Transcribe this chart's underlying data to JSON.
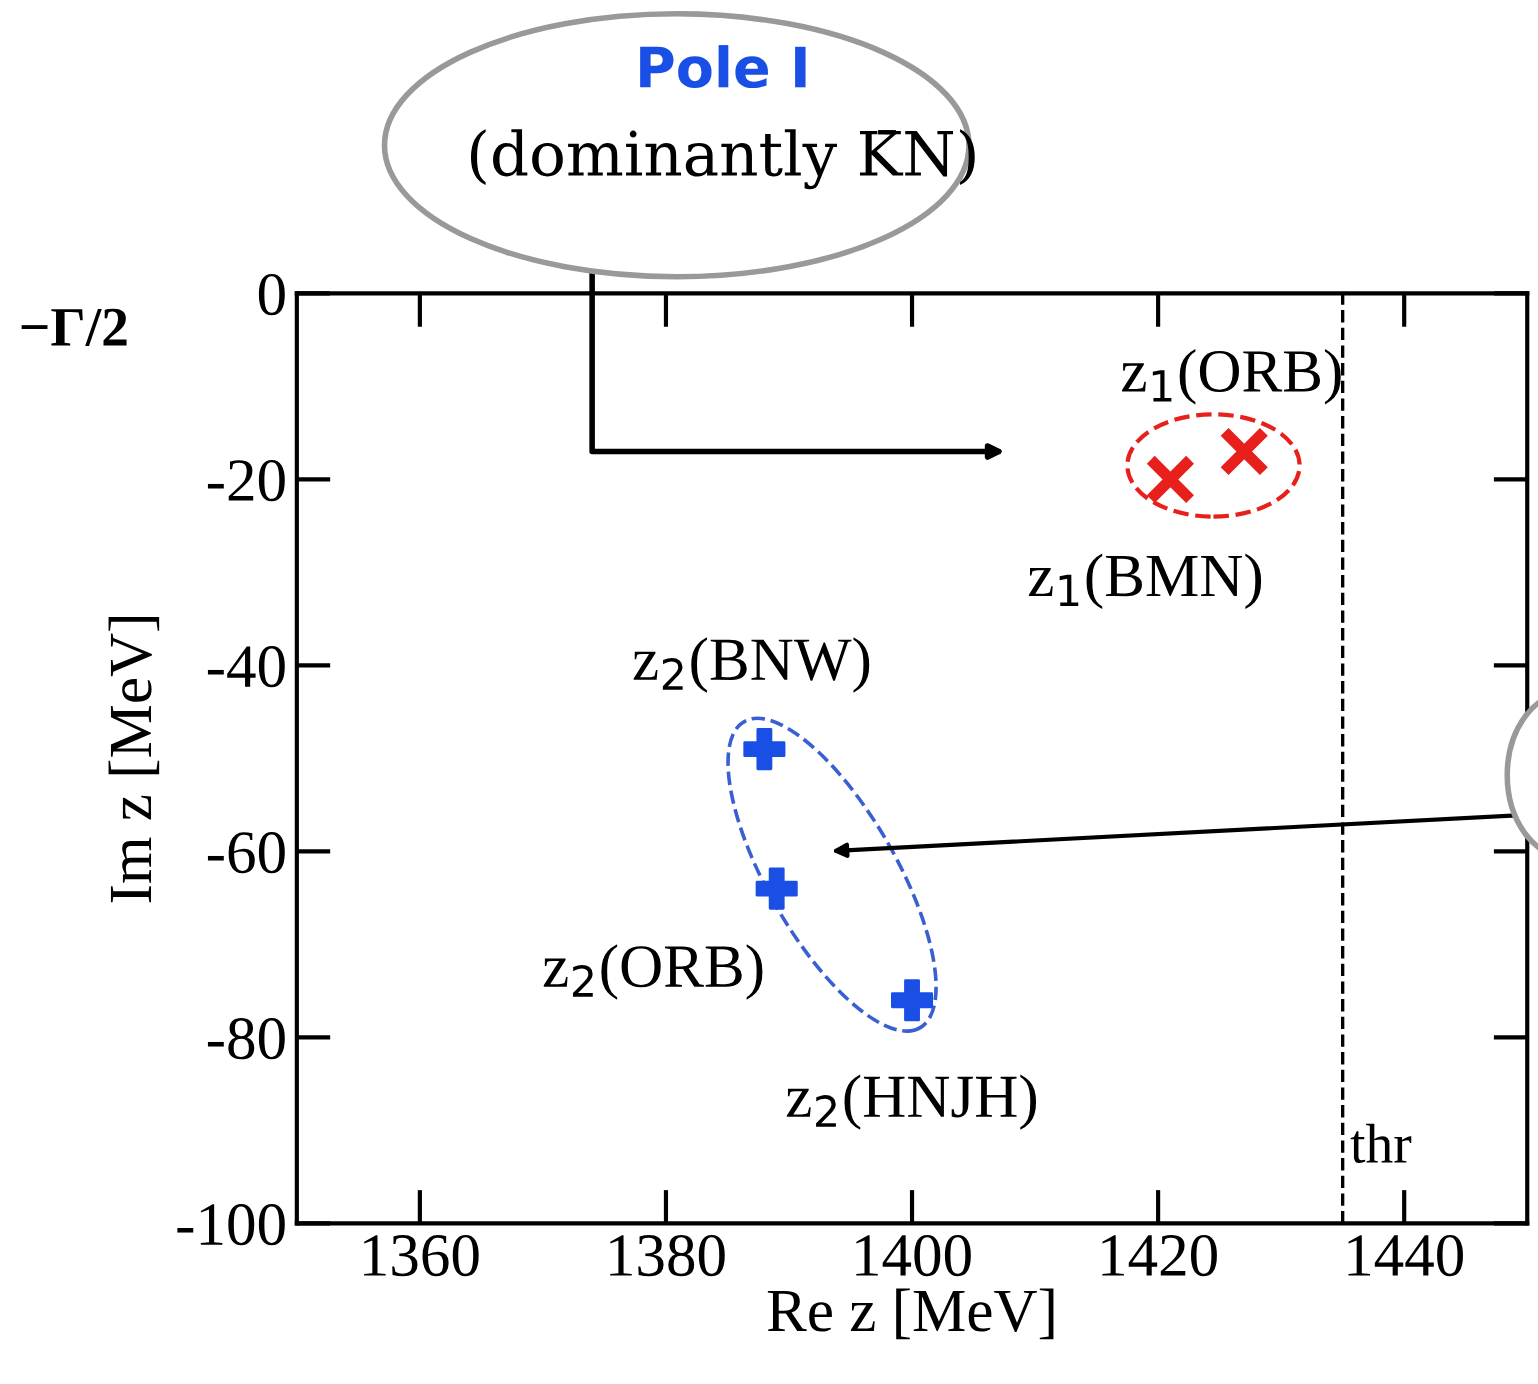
{
  "chart_data": {
    "type": "scatter",
    "xlabel": "Re z [MeV]",
    "ylabel": "Im z [MeV]",
    "xlim": [
      1350,
      1450
    ],
    "xticks": [
      1360,
      1380,
      1400,
      1420,
      1440
    ],
    "ylim": [
      -100,
      0
    ],
    "yticks": [
      -100,
      -80,
      -60,
      -40,
      -20,
      0
    ],
    "grid": false,
    "series": [
      {
        "color": "#e8201c",
        "marker": "cross",
        "x": [
          1421,
          1427
        ],
        "values": [
          -20,
          -17
        ]
      },
      {
        "color": "#1a4fe6",
        "marker": "plus",
        "x": [
          1388,
          1389,
          1400
        ],
        "values": [
          -49,
          -64,
          -76
        ]
      }
    ],
    "ref_lines": [
      {
        "axis": "x",
        "value": 1435,
        "label": "thr",
        "line_style": "dashed",
        "color": "#000000"
      }
    ],
    "annotations": [
      {
        "text": "z$_{1}$(ORB)",
        "x": 1427,
        "y": -17
      },
      {
        "text": "z$_{1}$(BMN)",
        "x": 1421,
        "y": -20
      },
      {
        "text": "z$_{2}$(BNW)",
        "x": 1388,
        "y": -49
      },
      {
        "text": "z$_{2}$(ORB)",
        "x": 1389,
        "y": -64
      },
      {
        "text": "z$_{2}$(HNJH)",
        "x": 1400,
        "y": -76
      },
      "−Γ/2",
      "Pole I",
      "(dominantly K̄N)"
    ]
  }
}
